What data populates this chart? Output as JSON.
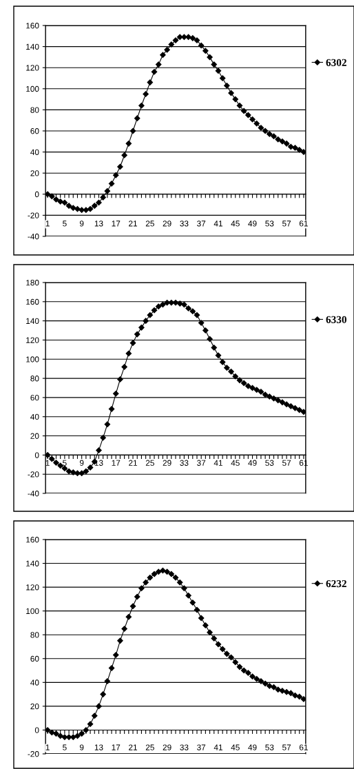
{
  "chart_data": [
    {
      "type": "line",
      "categories": [
        "1",
        null,
        null,
        null,
        "5",
        null,
        null,
        null,
        "9",
        null,
        null,
        null,
        "13",
        null,
        null,
        null,
        "17",
        null,
        null,
        null,
        "21",
        null,
        null,
        null,
        "25",
        null,
        null,
        null,
        "29",
        null,
        null,
        null,
        "33",
        null,
        null,
        null,
        "37",
        null,
        null,
        null,
        "41",
        null,
        null,
        null,
        "45",
        null,
        null,
        null,
        "49",
        null,
        null,
        null,
        "53",
        null,
        null,
        null,
        "57",
        null,
        null,
        null,
        "61"
      ],
      "series": [
        {
          "name": "6302",
          "color": "#000000",
          "values": [
            0,
            -2,
            -5,
            -7,
            -8,
            -11,
            -13,
            -14,
            -15,
            -15,
            -14,
            -11,
            -8,
            -3,
            3,
            10,
            18,
            26,
            37,
            48,
            60,
            72,
            84,
            95,
            106,
            116,
            123,
            132,
            137,
            142,
            146,
            149,
            149,
            149,
            148,
            146,
            141,
            136,
            130,
            123,
            117,
            110,
            103,
            96,
            90,
            84,
            79,
            75,
            71,
            67,
            63,
            60,
            57,
            55,
            52,
            50,
            48,
            45,
            44,
            42,
            40
          ]
        }
      ],
      "ylim": [
        -40,
        160
      ],
      "yticks": [
        -40,
        -20,
        0,
        20,
        40,
        60,
        80,
        100,
        120,
        140,
        160
      ],
      "grid": "y",
      "marker": "diamond",
      "line_style": "solid",
      "legend": "right"
    },
    {
      "type": "line",
      "categories": [
        "1",
        null,
        null,
        null,
        "5",
        null,
        null,
        null,
        "9",
        null,
        null,
        null,
        "13",
        null,
        null,
        null,
        "17",
        null,
        null,
        null,
        "21",
        null,
        null,
        null,
        "25",
        null,
        null,
        null,
        "29",
        null,
        null,
        null,
        "33",
        null,
        null,
        null,
        "37",
        null,
        null,
        null,
        "41",
        null,
        null,
        null,
        "45",
        null,
        null,
        null,
        "49",
        null,
        null,
        null,
        "53",
        null,
        null,
        null,
        "57",
        null,
        null,
        null,
        "61"
      ],
      "series": [
        {
          "name": "6330",
          "color": "#000000",
          "values": [
            0,
            -4,
            -8,
            -11,
            -14,
            -17,
            -18,
            -19,
            -19,
            -17,
            -13,
            -7,
            5,
            18,
            32,
            48,
            64,
            79,
            92,
            106,
            117,
            126,
            133,
            140,
            146,
            151,
            155,
            157,
            159,
            159,
            159,
            158,
            157,
            153,
            150,
            146,
            138,
            130,
            121,
            112,
            104,
            97,
            91,
            87,
            82,
            78,
            75,
            72,
            70,
            68,
            66,
            63,
            61,
            59,
            57,
            55,
            53,
            51,
            49,
            47,
            45
          ]
        }
      ],
      "ylim": [
        -40,
        180
      ],
      "yticks": [
        -40,
        -20,
        0,
        20,
        40,
        60,
        80,
        100,
        120,
        140,
        160,
        180
      ],
      "grid": "y",
      "marker": "diamond",
      "line_style": "solid",
      "legend": "right"
    },
    {
      "type": "line",
      "categories": [
        "1",
        null,
        null,
        null,
        "5",
        null,
        null,
        null,
        "9",
        null,
        null,
        null,
        "13",
        null,
        null,
        null,
        "17",
        null,
        null,
        null,
        "21",
        null,
        null,
        null,
        "25",
        null,
        null,
        null,
        "29",
        null,
        null,
        null,
        "33",
        null,
        null,
        null,
        "37",
        null,
        null,
        null,
        "41",
        null,
        null,
        null,
        "45",
        null,
        null,
        null,
        "49",
        null,
        null,
        null,
        "53",
        null,
        null,
        null,
        "57",
        null,
        null,
        null,
        "61"
      ],
      "series": [
        {
          "name": "6232",
          "color": "#000000",
          "values": [
            0,
            -2,
            -3,
            -5,
            -6,
            -6,
            -6,
            -5,
            -3,
            0,
            5,
            12,
            20,
            30,
            41,
            52,
            63,
            75,
            85,
            95,
            104,
            112,
            119,
            124,
            128,
            131,
            133,
            134,
            133,
            131,
            128,
            124,
            119,
            113,
            107,
            101,
            94,
            88,
            82,
            77,
            72,
            68,
            64,
            61,
            57,
            53,
            50,
            48,
            45,
            43,
            41,
            39,
            37,
            36,
            34,
            33,
            32,
            31,
            29,
            28,
            26
          ]
        }
      ],
      "ylim": [
        -20,
        160
      ],
      "yticks": [
        -20,
        0,
        20,
        40,
        60,
        80,
        100,
        120,
        140,
        160
      ],
      "grid": "y",
      "marker": "diamond",
      "line_style": "solid",
      "legend": "right"
    }
  ]
}
